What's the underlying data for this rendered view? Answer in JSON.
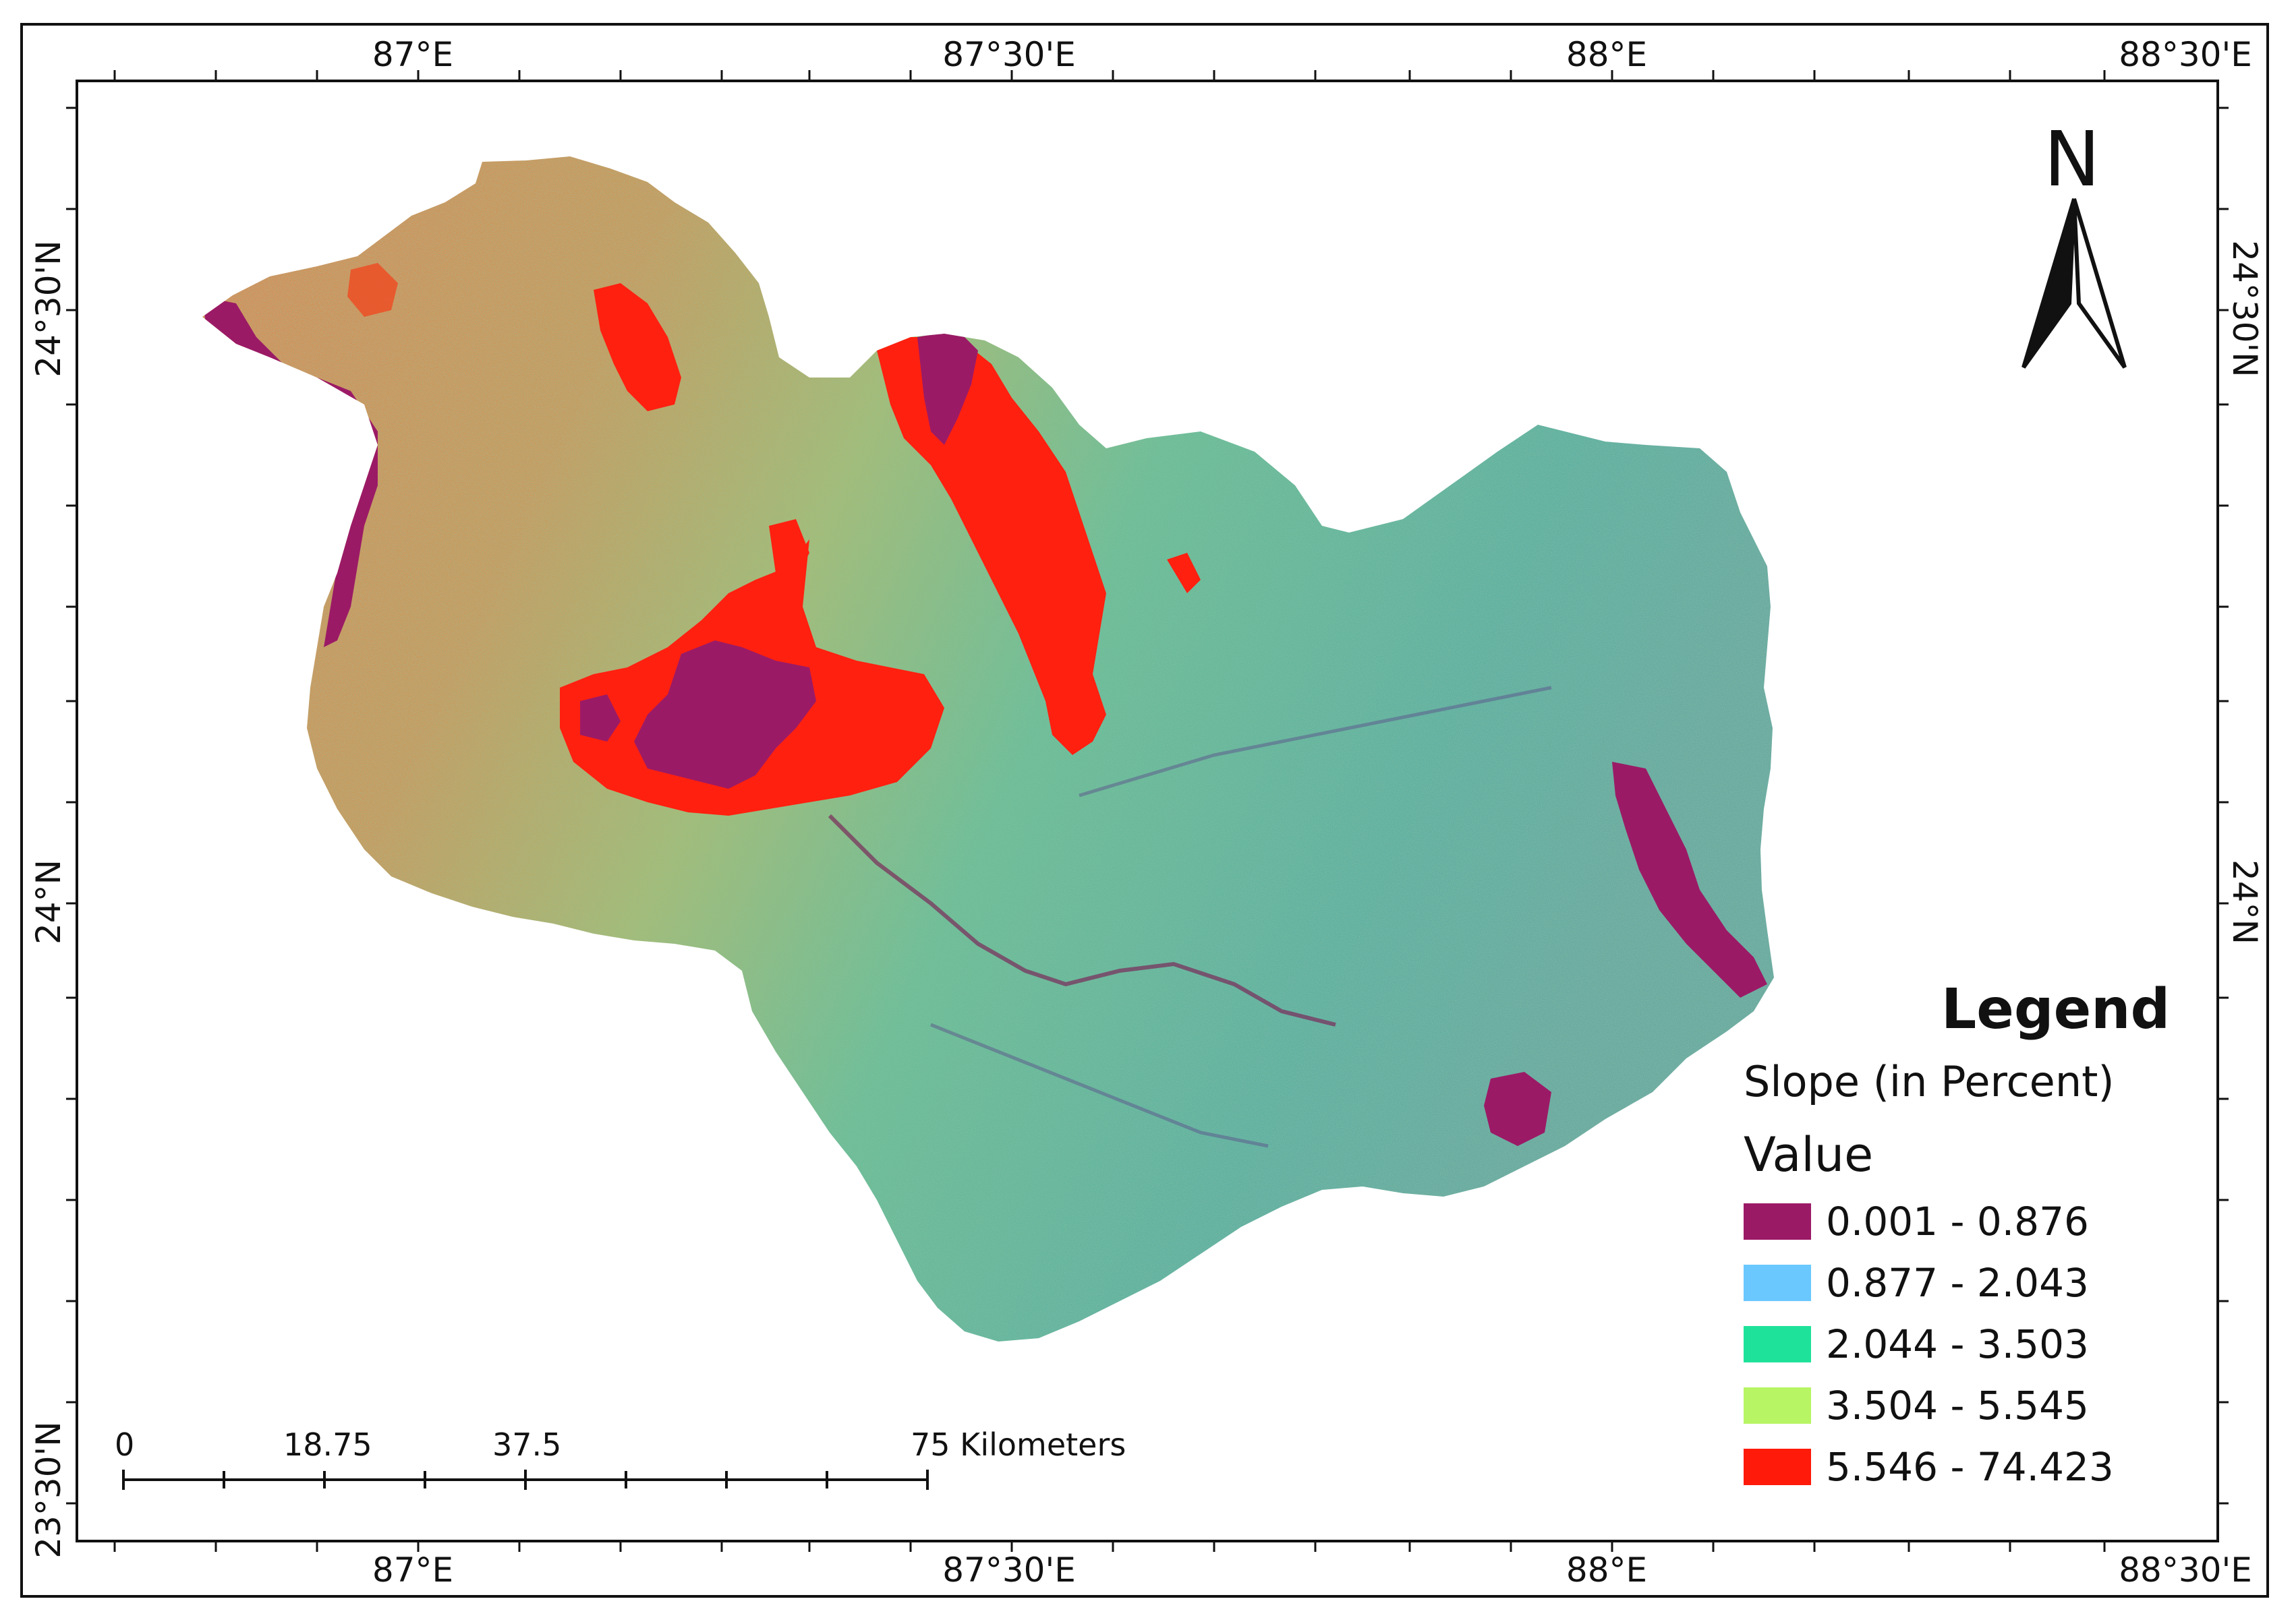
{
  "grid_labels": {
    "top": [
      "87°E",
      "87°30'E",
      "88°E",
      "88°30'E"
    ],
    "bottom": [
      "87°E",
      "87°30'E",
      "88°E",
      "88°30'E"
    ],
    "left": [
      "24°30'N",
      "24°N",
      "23°30'N"
    ],
    "right": [
      "24°30'N",
      "24°N"
    ]
  },
  "north_arrow": {
    "label": "N",
    "icon": "north-arrow-icon"
  },
  "legend": {
    "title": "Legend",
    "layer": "Slope (in Percent)",
    "value_heading": "Value",
    "classes": [
      {
        "label": "0.001 - 0.876",
        "color": "#9b1a66"
      },
      {
        "label": "0.877 - 2.043",
        "color": "#6ac8ff"
      },
      {
        "label": "2.044 - 3.503",
        "color": "#1fe29a"
      },
      {
        "label": "3.504 - 5.545",
        "color": "#b7f564"
      },
      {
        "label": "5.546 - 74.423",
        "color": "#ff1a0a"
      }
    ]
  },
  "scale_bar": {
    "labels": [
      "0",
      "18.75",
      "37.5",
      "75 Kilometers"
    ]
  }
}
